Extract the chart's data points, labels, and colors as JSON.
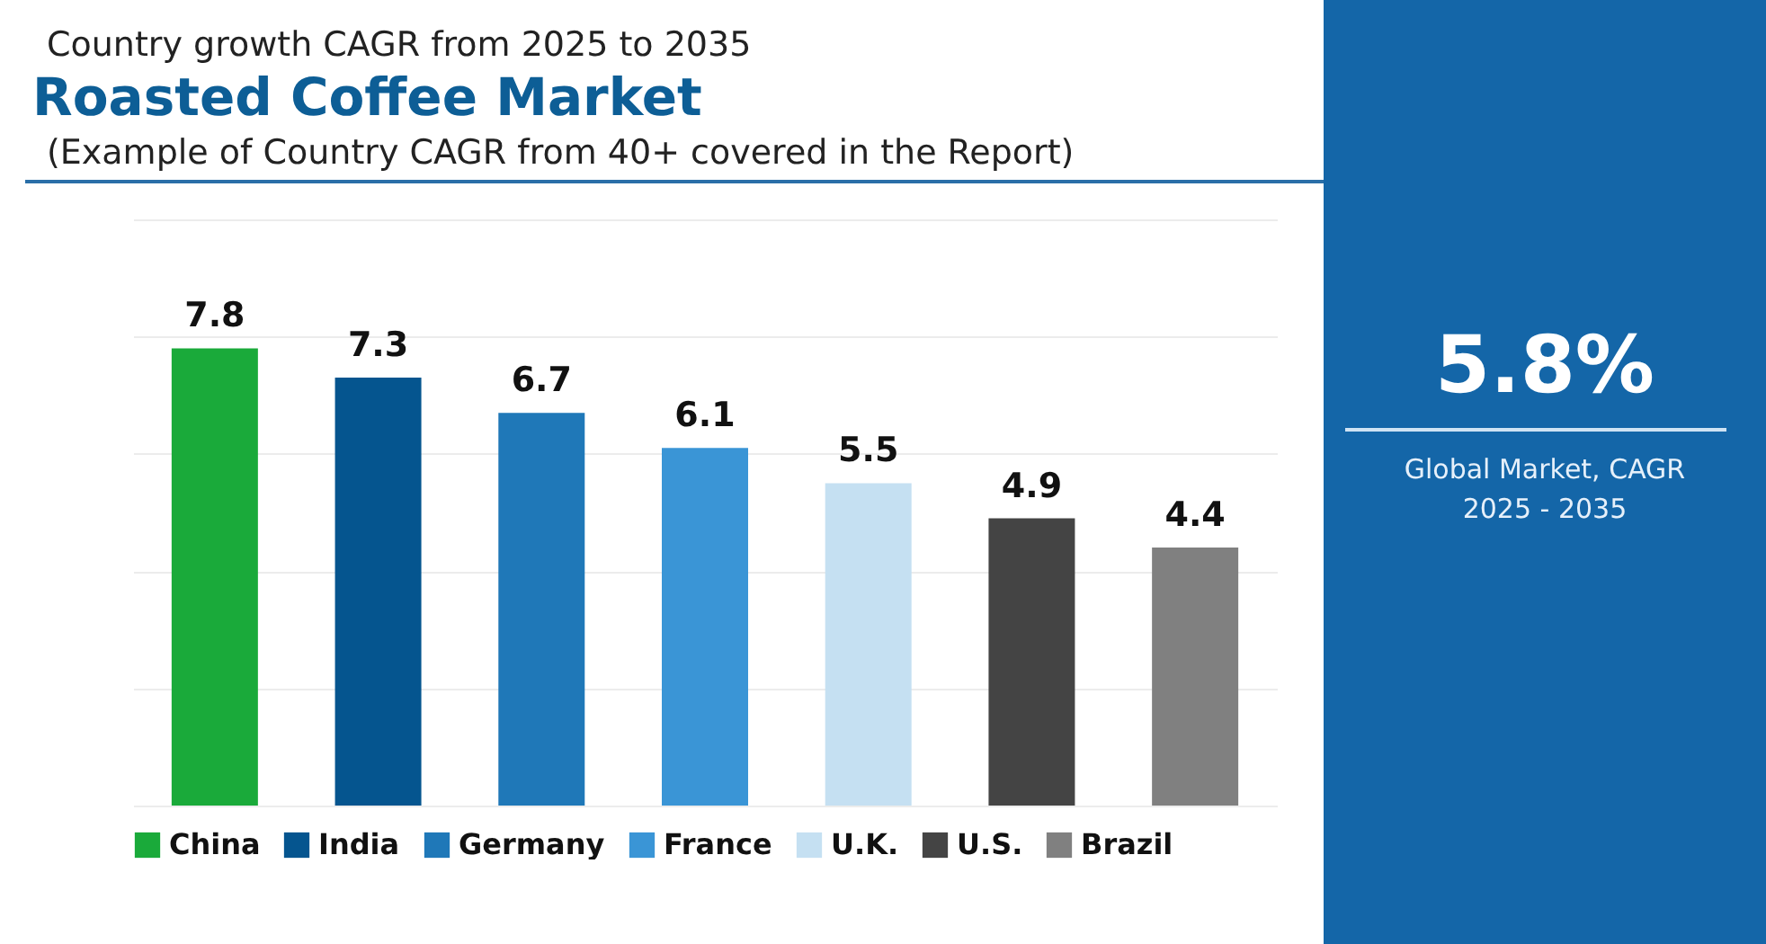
{
  "chart_data": {
    "type": "bar",
    "title": "Roasted Coffee Market",
    "subtitle": "(Example of Country CAGR from 40+ covered in the Report)",
    "annotations": [
      "Country growth CAGR from 2025 to 2035",
      "5.8%",
      "Global Market, CAGR 2025 - 2035"
    ],
    "categories": [
      null,
      null,
      null,
      null,
      null,
      null,
      null
    ],
    "series": [
      {
        "name": "China",
        "color": "#1aaa3a",
        "values": [
          7.8,
          null,
          null,
          null,
          null,
          null,
          null
        ]
      },
      {
        "name": "India",
        "color": "#05558f",
        "values": [
          null,
          7.3,
          null,
          null,
          null,
          null,
          null
        ]
      },
      {
        "name": "Germany",
        "color": "#1f78b8",
        "values": [
          null,
          null,
          6.7,
          null,
          null,
          null,
          null
        ]
      },
      {
        "name": "France",
        "color": "#3a95d6",
        "values": [
          null,
          null,
          null,
          6.1,
          null,
          null,
          null
        ]
      },
      {
        "name": "U.K.",
        "color": "#c5e0f2",
        "values": [
          null,
          null,
          null,
          null,
          5.5,
          null,
          null
        ]
      },
      {
        "name": "U.S.",
        "color": "#444444",
        "values": [
          null,
          null,
          null,
          null,
          null,
          4.9,
          null
        ]
      },
      {
        "name": "Brazil",
        "color": "#808080",
        "values": [
          null,
          null,
          null,
          null,
          null,
          null,
          4.4
        ]
      }
    ],
    "ylim": [
      0,
      10
    ],
    "yticks": [
      {
        "value": 0,
        "label": null
      },
      {
        "value": 2,
        "label": null
      },
      {
        "value": 4,
        "label": null
      },
      {
        "value": 6,
        "label": null
      },
      {
        "value": 8,
        "label": null
      },
      {
        "value": 10,
        "label": null
      }
    ],
    "stacked": true,
    "grid": "y",
    "tick_labels": false,
    "legend": "bottom",
    "data_labels": true
  }
}
